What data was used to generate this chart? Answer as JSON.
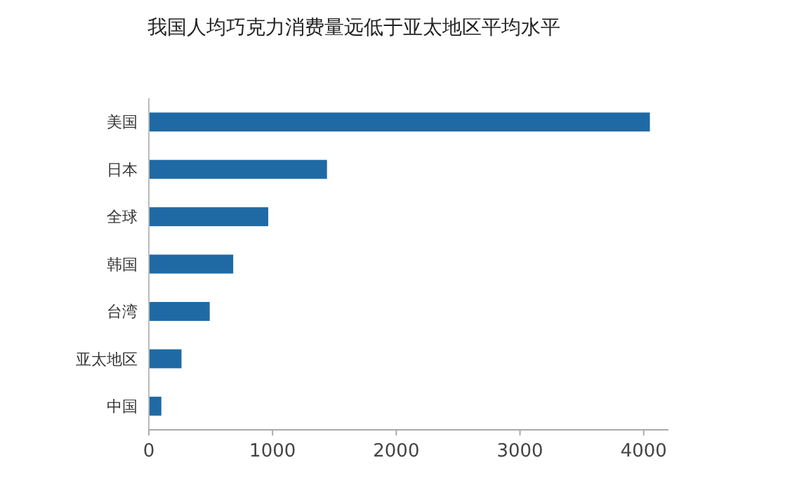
{
  "chart_data": {
    "type": "bar",
    "orientation": "horizontal",
    "title": "我国人均巧克力消费量远低于亚太地区平均水平",
    "categories": [
      "美国",
      "日本",
      "全球",
      "韩国",
      "台湾",
      "亚太地区",
      "中国"
    ],
    "values": [
      4050,
      1440,
      965,
      682,
      492,
      264,
      101
    ],
    "color": "#1f6aa5",
    "xlim": [
      0,
      4200
    ],
    "xticks": [
      0,
      1000,
      2000,
      3000,
      4000
    ],
    "grid": false
  }
}
